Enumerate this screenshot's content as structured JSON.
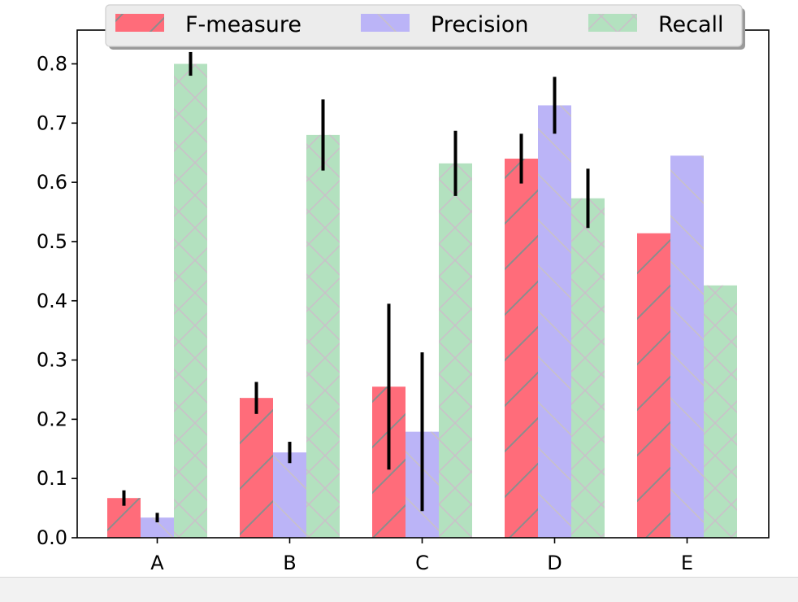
{
  "chart_data": {
    "type": "bar",
    "categories": [
      "A",
      "B",
      "C",
      "D",
      "E"
    ],
    "series": [
      {
        "name": "F-measure",
        "values": [
          0.067,
          0.236,
          0.255,
          0.64,
          0.514
        ],
        "errors": [
          0.013,
          0.027,
          0.14,
          0.042,
          null
        ],
        "color": "#ff6c7a",
        "hatch": "diagonal"
      },
      {
        "name": "Precision",
        "values": [
          0.034,
          0.144,
          0.179,
          0.73,
          0.645
        ],
        "errors": [
          0.008,
          0.018,
          0.134,
          0.048,
          null
        ],
        "color": "#bbb4f7",
        "hatch": "diagonal-reverse"
      },
      {
        "name": "Recall",
        "values": [
          0.8,
          0.68,
          0.632,
          0.573,
          0.426
        ],
        "errors": [
          0.02,
          0.06,
          0.055,
          0.05,
          null
        ],
        "color": "#b3e1bf",
        "hatch": "cross"
      }
    ],
    "title": "",
    "xlabel": "",
    "ylabel": "",
    "ylim": [
      0.0,
      0.8
    ],
    "yticks": [
      "0.0",
      "0.1",
      "0.2",
      "0.3",
      "0.4",
      "0.5",
      "0.6",
      "0.7",
      "0.8"
    ],
    "grid": false,
    "legend": {
      "position": "top-center",
      "columns": 3
    }
  }
}
